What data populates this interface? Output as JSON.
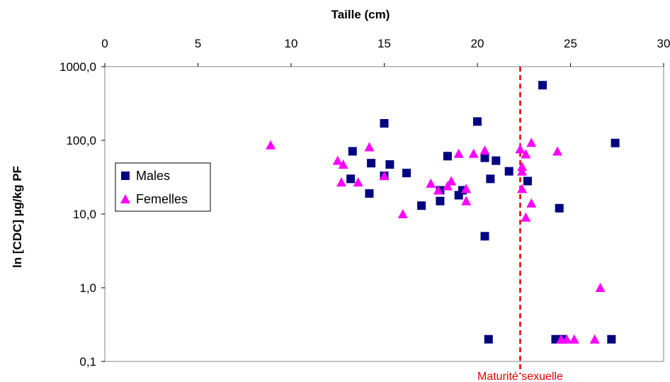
{
  "chart_data": {
    "type": "scatter",
    "title": "",
    "xlabel": "Taille (cm)",
    "ylabel": "ln [CDC] µg/kg PF",
    "xlim": [
      0,
      30
    ],
    "ylim": [
      0.1,
      1000
    ],
    "yscale": "log",
    "x_axis_position": "top",
    "grid": false,
    "x_ticks": [
      0,
      5,
      10,
      15,
      20,
      25,
      30
    ],
    "x_tick_labels": [
      "0",
      "5",
      "10",
      "15",
      "20",
      "25",
      "30"
    ],
    "y_ticks": [
      0.1,
      1,
      10,
      100,
      1000
    ],
    "y_tick_labels": [
      "0,1",
      "1,0",
      "10,0",
      "100,0",
      "1000,0"
    ],
    "legend": {
      "placement": "left",
      "entries": [
        {
          "label": "Males",
          "marker": "square",
          "color": "#000080"
        },
        {
          "label": "Femelles",
          "marker": "triangle",
          "color": "#FF00FF"
        }
      ]
    },
    "series": [
      {
        "name": "Males",
        "marker": "square",
        "color": "#000080",
        "points": [
          [
            13.3,
            71
          ],
          [
            13.2,
            30
          ],
          [
            14.3,
            49
          ],
          [
            14.2,
            19
          ],
          [
            15.0,
            170
          ],
          [
            15.3,
            47
          ],
          [
            15.0,
            33
          ],
          [
            16.2,
            36
          ],
          [
            17.0,
            13
          ],
          [
            18.0,
            21
          ],
          [
            18.0,
            15
          ],
          [
            18.4,
            61
          ],
          [
            19.0,
            18
          ],
          [
            19.2,
            21
          ],
          [
            20.0,
            180
          ],
          [
            20.4,
            58
          ],
          [
            20.4,
            5
          ],
          [
            20.7,
            30
          ],
          [
            21.0,
            53
          ],
          [
            21.7,
            38
          ],
          [
            22.7,
            28
          ],
          [
            23.5,
            560
          ],
          [
            24.4,
            12
          ],
          [
            27.4,
            92
          ],
          [
            20.6,
            0.2
          ],
          [
            24.2,
            0.2
          ],
          [
            24.6,
            0.2
          ],
          [
            27.2,
            0.2
          ]
        ]
      },
      {
        "name": "Femelles",
        "marker": "triangle",
        "color": "#FF00FF",
        "points": [
          [
            8.9,
            86
          ],
          [
            12.5,
            53
          ],
          [
            12.8,
            47
          ],
          [
            12.7,
            27
          ],
          [
            13.6,
            27
          ],
          [
            14.2,
            81
          ],
          [
            15.0,
            33
          ],
          [
            16.0,
            10
          ],
          [
            17.5,
            26
          ],
          [
            17.9,
            21
          ],
          [
            18.4,
            24
          ],
          [
            18.6,
            28
          ],
          [
            19.0,
            66
          ],
          [
            19.4,
            22
          ],
          [
            19.4,
            15
          ],
          [
            19.8,
            66
          ],
          [
            20.4,
            73
          ],
          [
            22.3,
            76
          ],
          [
            22.4,
            44
          ],
          [
            22.4,
            38
          ],
          [
            22.4,
            22
          ],
          [
            22.6,
            65
          ],
          [
            22.6,
            9
          ],
          [
            22.9,
            93
          ],
          [
            22.9,
            14
          ],
          [
            24.3,
            71
          ],
          [
            24.5,
            0.2
          ],
          [
            24.8,
            0.2
          ],
          [
            25.2,
            0.2
          ],
          [
            26.3,
            0.2
          ],
          [
            26.6,
            1.0
          ]
        ]
      }
    ],
    "annotations": [
      {
        "type": "vline",
        "x": 22.3,
        "style": "dashed",
        "color": "#E00000",
        "label": "Maturité sexuelle"
      }
    ]
  }
}
